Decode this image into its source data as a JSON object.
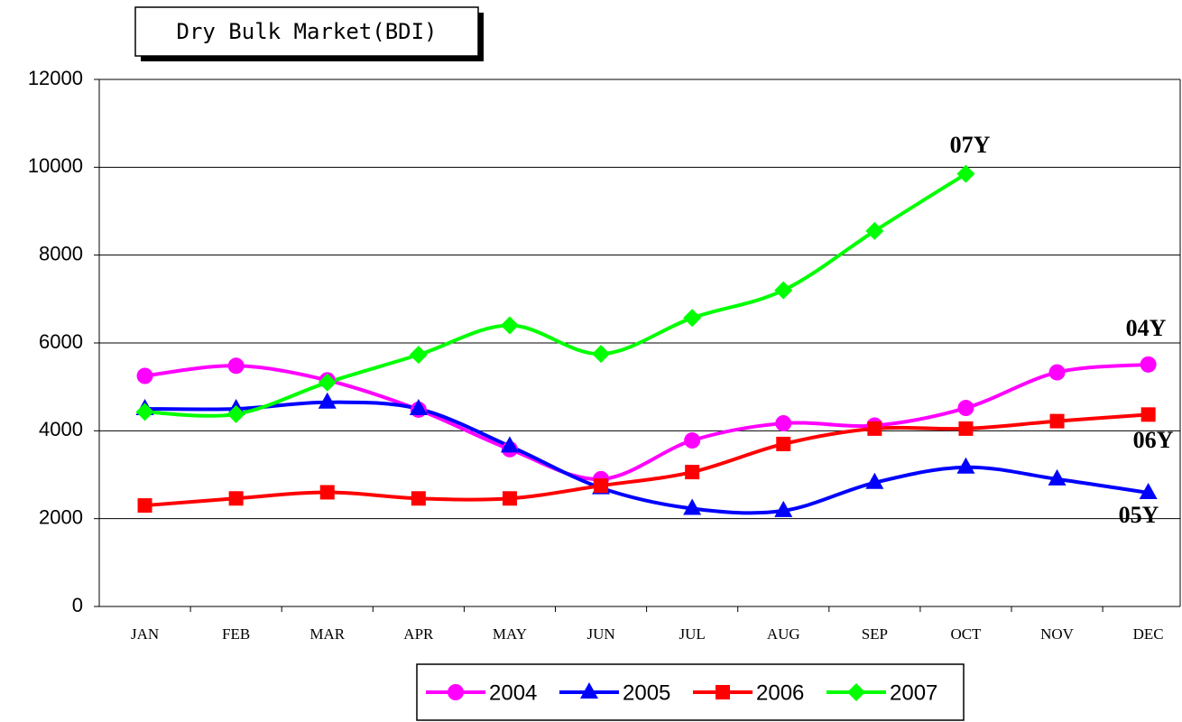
{
  "chart_data": {
    "type": "line",
    "title": "Dry Bulk Market(BDI)",
    "categories": [
      "JAN",
      "FEB",
      "MAR",
      "APR",
      "MAY",
      "JUN",
      "JUL",
      "AUG",
      "SEP",
      "OCT",
      "NOV",
      "DEC"
    ],
    "series": [
      {
        "name": "2004",
        "color": "#ff00ff",
        "marker": "circle",
        "values": [
          5250,
          5480,
          5150,
          4480,
          3580,
          2900,
          3780,
          4170,
          4120,
          4520,
          5330,
          5510
        ]
      },
      {
        "name": "2005",
        "color": "#0000ff",
        "marker": "triangle",
        "values": [
          4500,
          4500,
          4650,
          4500,
          3650,
          2700,
          2230,
          2180,
          2820,
          3170,
          2900,
          2590
        ]
      },
      {
        "name": "2006",
        "color": "#ff0000",
        "marker": "square",
        "values": [
          2300,
          2460,
          2600,
          2460,
          2460,
          2750,
          3060,
          3700,
          4050,
          4050,
          4220,
          4370
        ]
      },
      {
        "name": "2007",
        "color": "#00ff00",
        "marker": "diamond",
        "values": [
          4430,
          4380,
          5100,
          5730,
          6400,
          5750,
          6570,
          7200,
          8550,
          9850,
          null,
          null
        ]
      }
    ],
    "annotations": [
      "07Y",
      "04Y",
      "06Y",
      "05Y"
    ],
    "ylim": [
      0,
      12000
    ],
    "yticks": [
      0,
      2000,
      4000,
      6000,
      8000,
      10000,
      12000
    ],
    "grid": true,
    "legend": "bottom"
  }
}
